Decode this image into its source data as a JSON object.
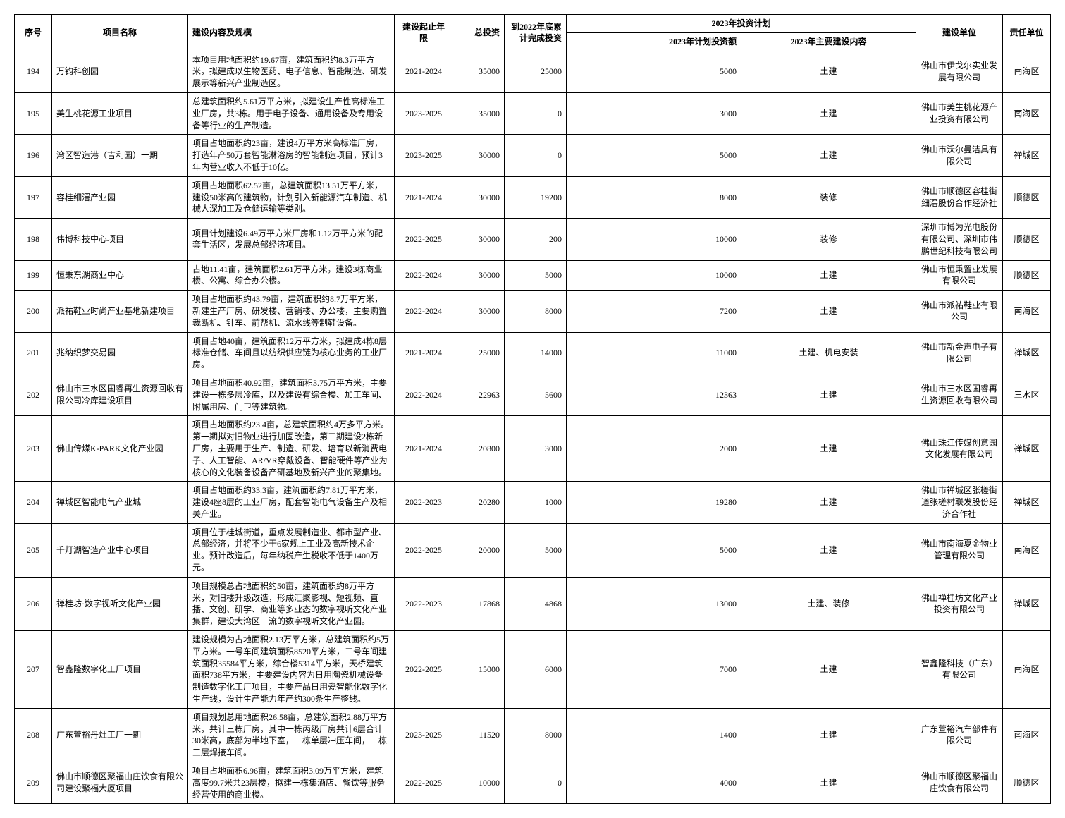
{
  "headers": {
    "seq": "序号",
    "name": "项目名称",
    "content": "建设内容及规模",
    "period": "建设起止年限",
    "total": "总投资",
    "done": "到2022年底累计完成投资",
    "plan_group": "2023年投资计划",
    "plan_amt": "2023年计划投资额",
    "plan_content": "2023年主要建设内容",
    "unit": "建设单位",
    "resp": "责任单位"
  },
  "rows": [
    {
      "seq": "194",
      "name": "万钧科创园",
      "content": "本项目用地面积约19.67亩，建筑面积约8.3万平方米，拟建成以生物医药、电子信息、智能制造、研发展示等新兴产业制造区。",
      "period": "2021-2024",
      "total": "35000",
      "done": "25000",
      "plan_amt": "5000",
      "plan_content": "土建",
      "unit": "佛山市伊戈尔实业发展有限公司",
      "resp": "南海区"
    },
    {
      "seq": "195",
      "name": "美生桃花源工业项目",
      "content": "总建筑面积约5.61万平方米，拟建设生产性高标准工业厂房，共3栋。用于电子设备、通用设备及专用设备等行业的生产制造。",
      "period": "2023-2025",
      "total": "35000",
      "done": "0",
      "plan_amt": "3000",
      "plan_content": "土建",
      "unit": "佛山市美生桃花源产业投资有限公司",
      "resp": "南海区"
    },
    {
      "seq": "196",
      "name": "湾区智造港（吉利园）一期",
      "content": "项目占地面积约23亩，建设4万平方米高标准厂房，打造年产50万套智能淋浴房的智能制造项目，预计3年内营业收入不低于10亿。",
      "period": "2023-2025",
      "total": "30000",
      "done": "0",
      "plan_amt": "5000",
      "plan_content": "土建",
      "unit": "佛山市沃尔曼洁具有限公司",
      "resp": "禅城区"
    },
    {
      "seq": "197",
      "name": "容桂细滘产业园",
      "content": "项目占地面积62.52亩，总建筑面积13.51万平方米，建设50米高的建筑物，计划引入新能源汽车制造、机械人深加工及仓储运输等类别。",
      "period": "2021-2024",
      "total": "30000",
      "done": "19200",
      "plan_amt": "8000",
      "plan_content": "装修",
      "unit": "佛山市顺德区容桂街细滘股份合作经济社",
      "resp": "顺德区"
    },
    {
      "seq": "198",
      "name": "伟博科技中心项目",
      "content": "项目计划建设6.49万平方米厂房和1.12万平方米的配套生活区，发展总部经济项目。",
      "period": "2022-2025",
      "total": "30000",
      "done": "200",
      "plan_amt": "10000",
      "plan_content": "装修",
      "unit": "深圳市博为光电股份有限公司、深圳市伟鹏世纪科技有限公司",
      "resp": "顺德区"
    },
    {
      "seq": "199",
      "name": "恒秉东湖商业中心",
      "content": "占地11.41亩，建筑面积2.61万平方米，建设3栋商业楼、公寓、综合办公楼。",
      "period": "2022-2024",
      "total": "30000",
      "done": "5000",
      "plan_amt": "10000",
      "plan_content": "土建",
      "unit": "佛山市恒秉置业发展有限公司",
      "resp": "顺德区"
    },
    {
      "seq": "200",
      "name": "派祐鞋业时尚产业基地新建项目",
      "content": "项目占地面积约43.79亩，建筑面积约8.7万平方米，新建生产厂房、研发楼、营销楼、办公楼，主要购置裁断机、针车、前帮机、流水线等制鞋设备。",
      "period": "2022-2024",
      "total": "30000",
      "done": "8000",
      "plan_amt": "7200",
      "plan_content": "土建",
      "unit": "佛山市派祐鞋业有限公司",
      "resp": "南海区"
    },
    {
      "seq": "201",
      "name": "兆纳织梦交易园",
      "content": "项目占地40亩，建筑面积12万平方米，拟建成4栋8层标准仓储、车间且以纺织供应链为核心业务的工业厂房。",
      "period": "2021-2024",
      "total": "25000",
      "done": "14000",
      "plan_amt": "11000",
      "plan_content": "土建、机电安装",
      "unit": "佛山市新金声电子有限公司",
      "resp": "禅城区"
    },
    {
      "seq": "202",
      "name": "佛山市三水区国睿再生资源回收有限公司冷库建设项目",
      "content": "项目占地面积40.92亩，建筑面积3.75万平方米，主要建设一栋多层冷库，以及建设有综合楼、加工车间、附属用房、门卫等建筑物。",
      "period": "2022-2024",
      "total": "22963",
      "done": "5600",
      "plan_amt": "12363",
      "plan_content": "土建",
      "unit": "佛山市三水区国睿再生资源回收有限公司",
      "resp": "三水区"
    },
    {
      "seq": "203",
      "name": "佛山传煤K-PARK文化产业园",
      "content": "项目占地面积约23.4亩，总建筑面积约4万多平方米。第一期拟对旧物业进行加固改造，第二期建设2栋新厂房，主要用于生产、制造、研发、培育以新消费电子、人工智能、AR/VR穿戴设备、智能硬件等产业为核心的文化装备设备产研基地及新兴产业的聚集地。",
      "period": "2021-2024",
      "total": "20800",
      "done": "3000",
      "plan_amt": "2000",
      "plan_content": "土建",
      "unit": "佛山珠江传媒创意园文化发展有限公司",
      "resp": "禅城区"
    },
    {
      "seq": "204",
      "name": "禅城区智能电气产业城",
      "content": "项目占地面积约33.3亩，建筑面积约7.81万平方米，建设4座8层的工业厂房，配套智能电气设备生产及相关产业。",
      "period": "2022-2023",
      "total": "20280",
      "done": "1000",
      "plan_amt": "19280",
      "plan_content": "土建",
      "unit": "佛山市禅城区张槎街道张槎村联发股份经济合作社",
      "resp": "禅城区"
    },
    {
      "seq": "205",
      "name": "千灯湖智造产业中心项目",
      "content": "项目位于桂城街道，重点发展制造业、都市型产业、总部经济，并将不少于6家规上工业及高新技术企业。预计改造后，每年纳税产生税收不低于1400万元。",
      "period": "2022-2025",
      "total": "20000",
      "done": "5000",
      "plan_amt": "5000",
      "plan_content": "土建",
      "unit": "佛山市南海夏金物业管理有限公司",
      "resp": "南海区"
    },
    {
      "seq": "206",
      "name": "禅桂坊·数字视听文化产业园",
      "content": "项目规模总占地面积约50亩，建筑面积约8万平方米，对旧楼升级改造，形成汇聚影视、短视频、直播、文创、研学、商业等多业态的数字视听文化产业集群，建设大湾区一流的数字视听文化产业园。",
      "period": "2022-2023",
      "total": "17868",
      "done": "4868",
      "plan_amt": "13000",
      "plan_content": "土建、装修",
      "unit": "佛山禅桂坊文化产业投资有限公司",
      "resp": "禅城区"
    },
    {
      "seq": "207",
      "name": "智鑫隆数字化工厂项目",
      "content": "建设规模为占地面积2.13万平方米，总建筑面积约5万平方米。一号车间建筑面积8520平方米，二号车间建筑面积35584平方米，综合楼5314平方米，天桥建筑面积738平方米，主要建设内容为日用陶瓷机械设备制造数字化工厂项目，主要产品日用瓷智能化数字化生产线，设计生产能力年产约300条生产整线。",
      "period": "2022-2025",
      "total": "15000",
      "done": "6000",
      "plan_amt": "7000",
      "plan_content": "土建",
      "unit": "智鑫隆科技（广东）有限公司",
      "resp": "南海区"
    },
    {
      "seq": "208",
      "name": "广东萱裕丹灶工厂一期",
      "content": "项目规划总用地面积26.58亩，总建筑面积2.88万平方米，共计三栋厂房，其中一栋丙级厂房共计6层合计30米高，底部为半地下室，一栋单层冲压车间，一栋三层焊接车间。",
      "period": "2023-2025",
      "total": "11520",
      "done": "8000",
      "plan_amt": "1400",
      "plan_content": "土建",
      "unit": "广东萱裕汽车部件有限公司",
      "resp": "南海区"
    },
    {
      "seq": "209",
      "name": "佛山市顺德区聚福山庄饮食有限公司建设聚福大厦项目",
      "content": "项目占地面积6.96亩，建筑面积3.09万平方米，建筑高度99.7米共23层楼，拟建一栋集酒店、餐饮等服务经营使用的商业楼。",
      "period": "2022-2025",
      "total": "10000",
      "done": "0",
      "plan_amt": "4000",
      "plan_content": "土建",
      "unit": "佛山市顺德区聚福山庄饮食有限公司",
      "resp": "顺德区"
    }
  ]
}
